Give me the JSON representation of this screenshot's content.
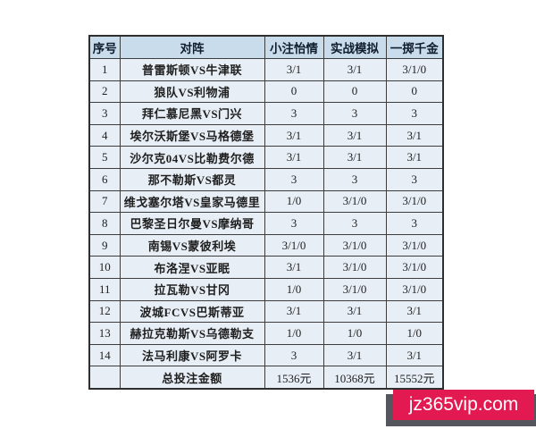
{
  "table": {
    "columns": [
      {
        "key": "index",
        "label": "序号"
      },
      {
        "key": "match",
        "label": "对阵"
      },
      {
        "key": "small",
        "label": "小注怡情"
      },
      {
        "key": "sim",
        "label": "实战模拟"
      },
      {
        "key": "big",
        "label": "一掷千金"
      }
    ],
    "rows": [
      {
        "index": "1",
        "match": "普雷斯顿VS牛津联",
        "small": "3/1",
        "sim": "3/1",
        "big": "3/1/0"
      },
      {
        "index": "2",
        "match": "狼队VS利物浦",
        "small": "0",
        "sim": "0",
        "big": "0"
      },
      {
        "index": "3",
        "match": "拜仁慕尼黑VS门兴",
        "small": "3",
        "sim": "3",
        "big": "3"
      },
      {
        "index": "4",
        "match": "埃尔沃斯堡VS马格德堡",
        "small": "3/1",
        "sim": "3/1",
        "big": "3/1"
      },
      {
        "index": "5",
        "match": "沙尔克04VS比勒费尔德",
        "small": "3/1",
        "sim": "3/1",
        "big": "3/1"
      },
      {
        "index": "6",
        "match": "那不勒斯VS都灵",
        "small": "3",
        "sim": "3",
        "big": "3"
      },
      {
        "index": "7",
        "match": "维戈塞尔塔VS皇家马德里",
        "small": "1/0",
        "sim": "3/1/0",
        "big": "3/1/0"
      },
      {
        "index": "8",
        "match": "巴黎圣日尔曼VS摩纳哥",
        "small": "3",
        "sim": "3",
        "big": "3"
      },
      {
        "index": "9",
        "match": "南锡VS蒙彼利埃",
        "small": "3/1/0",
        "sim": "3/1/0",
        "big": "3/1/0"
      },
      {
        "index": "10",
        "match": "布洛涅VS亚眠",
        "small": "3/1",
        "sim": "3/1/0",
        "big": "3/1/0"
      },
      {
        "index": "11",
        "match": "拉瓦勒VS甘冈",
        "small": "1/0",
        "sim": "3/1/0",
        "big": "3/1/0"
      },
      {
        "index": "12",
        "match": "波城FCVS巴斯蒂亚",
        "small": "3/1",
        "sim": "3/1",
        "big": "3/1"
      },
      {
        "index": "13",
        "match": "赫拉克勒斯VS乌德勒支",
        "small": "1/0",
        "sim": "1/0",
        "big": "1/0"
      },
      {
        "index": "14",
        "match": "法马利康VS阿罗卡",
        "small": "3",
        "sim": "3/1",
        "big": "3/1"
      }
    ],
    "total": {
      "index": "",
      "label": "总投注金额",
      "small": "1536元",
      "sim": "10368元",
      "big": "15552元"
    },
    "colors": {
      "header_bg": "#c9dcec",
      "row_bg": "#e7eef5",
      "border": "#3d3d3d",
      "text": "#1f1f1f"
    }
  },
  "watermark": {
    "text": "jz365vip.com",
    "badge_color": "#e31a52",
    "shadow_color": "#55565e",
    "text_color": "#ffffff"
  }
}
